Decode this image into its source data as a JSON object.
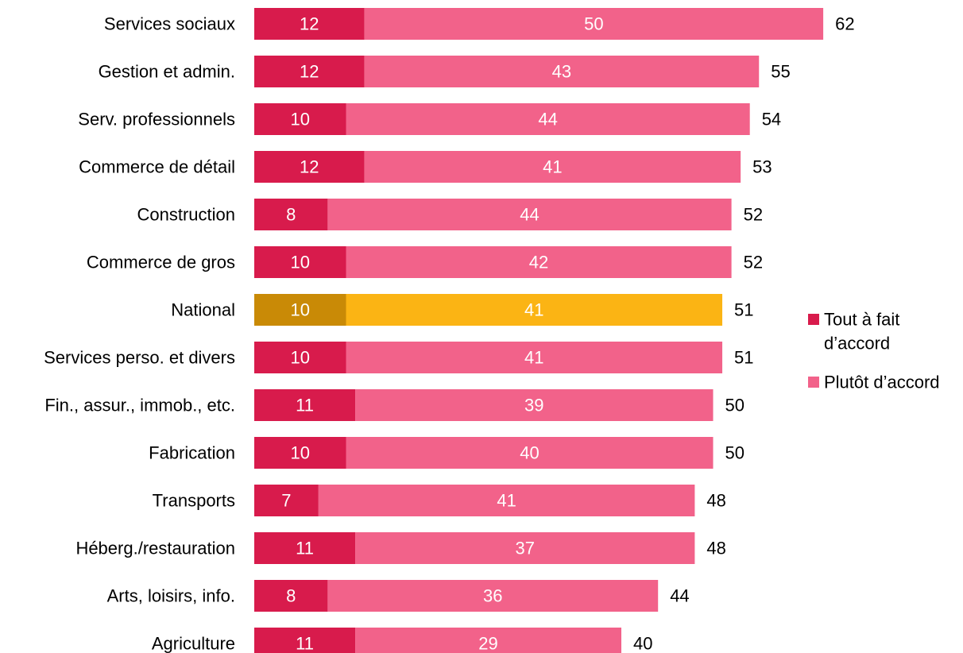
{
  "chart_data": {
    "type": "bar",
    "orientation": "horizontal",
    "stacked": true,
    "title": "",
    "xlabel": "",
    "ylabel": "",
    "xlim": [
      0,
      70
    ],
    "grid": false,
    "legend_position": "right",
    "categories": [
      "Services sociaux",
      "Gestion et admin.",
      "Serv. professionnels",
      "Commerce de détail",
      "Construction",
      "Commerce de gros",
      "National",
      "Services perso. et divers",
      "Fin., assur., immob., etc.",
      "Fabrication",
      "Transports",
      "Héberg./restauration",
      "Arts, loisirs, info.",
      "Agriculture"
    ],
    "series": [
      {
        "name": "Tout à fait d’accord",
        "values": [
          12,
          12,
          10,
          12,
          8,
          10,
          10,
          10,
          11,
          10,
          7,
          11,
          8,
          11
        ],
        "color": "#d81b4c"
      },
      {
        "name": "Plutôt d’accord",
        "values": [
          50,
          43,
          44,
          41,
          44,
          42,
          41,
          41,
          39,
          40,
          41,
          37,
          36,
          29
        ],
        "color": "#f2628a"
      }
    ],
    "totals": [
      62,
      55,
      54,
      53,
      52,
      52,
      51,
      51,
      50,
      50,
      48,
      48,
      44,
      40
    ],
    "highlight": {
      "category": "National",
      "colors": [
        "#c98a06",
        "#fbb414"
      ]
    },
    "legend": {
      "items": [
        {
          "lines": [
            "Tout à fait",
            "d’accord"
          ],
          "color": "#d81b4c"
        },
        {
          "lines": [
            "Plutôt d’accord"
          ],
          "color": "#f2628a"
        }
      ]
    }
  }
}
